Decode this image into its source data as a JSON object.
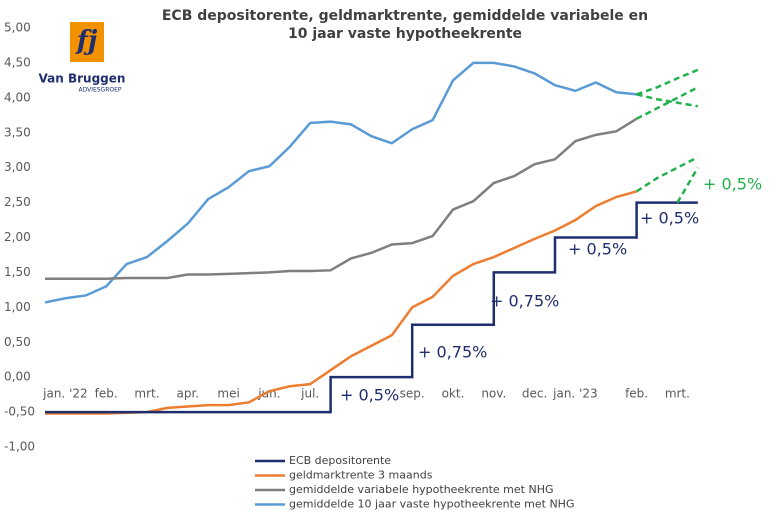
{
  "chart_data": {
    "type": "line",
    "step_series": [
      "ECB depositorente"
    ],
    "title": [
      "ECB depositorente, geldmarktrente, gemiddelde variabele en",
      "10 jaar vaste hypotheekrente"
    ],
    "logo": {
      "mark": "fj",
      "name": "Van Bruggen",
      "sub": "ADVIESGROEP"
    },
    "categories": [
      null,
      "jan. '22",
      null,
      "feb.",
      null,
      "mrt.",
      null,
      "apr.",
      null,
      "mei",
      null,
      "jun.",
      null,
      "jul.",
      null,
      null,
      null,
      null,
      "sep.",
      null,
      "okt.",
      null,
      "nov.",
      null,
      "dec.",
      null,
      "jan. '23",
      null,
      null,
      "feb.",
      null,
      "mrt.",
      null
    ],
    "ylim": [
      -1,
      5
    ],
    "yticks": [
      {
        "value": 5,
        "label": "5,00"
      },
      {
        "value": 4.5,
        "label": "4,50"
      },
      {
        "value": 4,
        "label": "4,00"
      },
      {
        "value": 3.5,
        "label": "3,50"
      },
      {
        "value": 3,
        "label": "3,00"
      },
      {
        "value": 2.5,
        "label": "2,50"
      },
      {
        "value": 2,
        "label": "2,00"
      },
      {
        "value": 1.5,
        "label": "1,50"
      },
      {
        "value": 1,
        "label": "1,00"
      },
      {
        "value": 0.5,
        "label": "0,50"
      },
      {
        "value": 0,
        "label": "0,00"
      },
      {
        "value": -0.5,
        "label": "-0,50"
      },
      {
        "value": -1,
        "label": "-1,00"
      }
    ],
    "grid": false,
    "series": [
      {
        "name": "ECB depositorente",
        "color": "#1f2e6e",
        "values": [
          -0.5,
          -0.5,
          -0.5,
          -0.5,
          -0.5,
          -0.5,
          -0.5,
          -0.5,
          -0.5,
          -0.5,
          -0.5,
          -0.5,
          -0.5,
          -0.5,
          0,
          0,
          0,
          0,
          0.75,
          0.75,
          0.75,
          0.75,
          1.5,
          1.5,
          1.5,
          2,
          2,
          2,
          2,
          2.5,
          2.5,
          2.5,
          2.5
        ]
      },
      {
        "name": "geldmarktrente 3 maands",
        "color": "#ed7d31",
        "values": [
          -0.52,
          -0.52,
          -0.52,
          -0.52,
          -0.51,
          -0.5,
          -0.44,
          -0.42,
          -0.4,
          -0.4,
          -0.36,
          -0.2,
          -0.13,
          -0.1,
          0.1,
          0.3,
          0.45,
          0.6,
          1.0,
          1.15,
          1.45,
          1.62,
          1.72,
          1.85,
          1.98,
          2.1,
          2.25,
          2.45,
          2.58,
          2.66,
          null,
          null,
          null
        ]
      },
      {
        "name": "gemiddelde variabele hypotheekrente met NHG",
        "color": "#7f7f7f",
        "values": [
          1.41,
          1.41,
          1.41,
          1.41,
          1.42,
          1.42,
          1.42,
          1.47,
          1.47,
          1.48,
          1.49,
          1.5,
          1.52,
          1.52,
          1.53,
          1.7,
          1.78,
          1.9,
          1.92,
          2.02,
          2.4,
          2.52,
          2.78,
          2.88,
          3.05,
          3.12,
          3.38,
          3.47,
          3.52,
          3.7,
          null,
          null,
          null
        ]
      },
      {
        "name": "gemiddelde 10 jaar vaste hypotheekrente met NHG",
        "color": "#5b9bd5",
        "values": [
          1.07,
          1.13,
          1.17,
          1.3,
          1.62,
          1.72,
          1.95,
          2.2,
          2.55,
          2.72,
          2.95,
          3.02,
          3.3,
          3.64,
          3.66,
          3.62,
          3.45,
          3.35,
          3.55,
          3.68,
          4.25,
          4.5,
          4.5,
          4.45,
          4.35,
          4.18,
          4.1,
          4.22,
          4.08,
          4.05,
          null,
          null,
          null
        ]
      }
    ],
    "projections": [
      {
        "color": "#22b14c",
        "values": [
          null,
          null,
          null,
          null,
          null,
          null,
          null,
          null,
          null,
          null,
          null,
          null,
          null,
          null,
          null,
          null,
          null,
          null,
          null,
          null,
          null,
          null,
          null,
          null,
          null,
          null,
          null,
          null,
          null,
          null,
          null,
          2.5,
          3.0
        ]
      },
      {
        "color": "#22b14c",
        "values": [
          null,
          null,
          null,
          null,
          null,
          null,
          null,
          null,
          null,
          null,
          null,
          null,
          null,
          null,
          null,
          null,
          null,
          null,
          null,
          null,
          null,
          null,
          null,
          null,
          null,
          null,
          null,
          null,
          null,
          2.66,
          2.85,
          3.0,
          3.15
        ]
      },
      {
        "color": "#22b14c",
        "values": [
          null,
          null,
          null,
          null,
          null,
          null,
          null,
          null,
          null,
          null,
          null,
          null,
          null,
          null,
          null,
          null,
          null,
          null,
          null,
          null,
          null,
          null,
          null,
          null,
          null,
          null,
          null,
          null,
          null,
          3.7,
          3.85,
          4.0,
          4.15
        ]
      },
      {
        "color": "#22b14c",
        "values": [
          null,
          null,
          null,
          null,
          null,
          null,
          null,
          null,
          null,
          null,
          null,
          null,
          null,
          null,
          null,
          null,
          null,
          null,
          null,
          null,
          null,
          null,
          null,
          null,
          null,
          null,
          null,
          null,
          null,
          4.05,
          4.15,
          4.28,
          4.4
        ]
      },
      {
        "color": "#22b14c",
        "values": [
          null,
          null,
          null,
          null,
          null,
          null,
          null,
          null,
          null,
          null,
          null,
          null,
          null,
          null,
          null,
          null,
          null,
          null,
          null,
          null,
          null,
          null,
          null,
          null,
          null,
          null,
          null,
          null,
          null,
          4.05,
          3.98,
          3.93,
          3.88
        ]
      }
    ],
    "annotations": [
      {
        "text": "+ 0,5%",
        "color": "#1f2e6e"
      },
      {
        "text": "+ 0,75%",
        "color": "#1f2e6e"
      },
      {
        "text": "+ 0,75%",
        "color": "#1f2e6e"
      },
      {
        "text": "+ 0,5%",
        "color": "#1f2e6e"
      },
      {
        "text": "+ 0,5%",
        "color": "#1f2e6e"
      },
      {
        "text": "+ 0,5%",
        "color": "#22b14c"
      }
    ]
  }
}
